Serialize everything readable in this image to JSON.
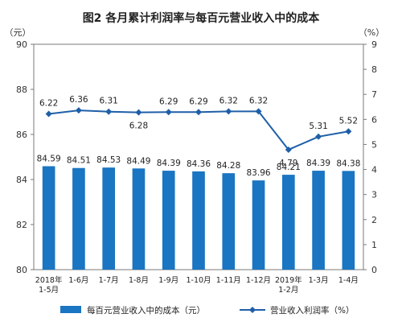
{
  "chart_data": {
    "type": "bar",
    "title": "图2  各月累计利润率与每百元营业收入中的成本",
    "left_unit": "（元）",
    "right_unit": "（%）",
    "categories": [
      [
        "2018年",
        "1-5月"
      ],
      [
        "1-6月"
      ],
      [
        "1-7月"
      ],
      [
        "1-8月"
      ],
      [
        "1-9月"
      ],
      [
        "1-10月"
      ],
      [
        "1-11月"
      ],
      [
        "1-12月"
      ],
      [
        "2019年",
        "1-2月"
      ],
      [
        "1-3月"
      ],
      [
        "1-4月"
      ]
    ],
    "series": [
      {
        "name": "每百元营业收入中的成本（元）",
        "kind": "bar",
        "axis": "left",
        "color": "#1a75c2",
        "values": [
          84.59,
          84.51,
          84.53,
          84.49,
          84.39,
          84.36,
          84.28,
          83.96,
          84.21,
          84.39,
          84.38
        ],
        "labels": [
          "84.59",
          "84.51",
          "84.53",
          "84.49",
          "84.39",
          "84.36",
          "84.28",
          "83.96",
          "84.21",
          "84.39",
          "84.38"
        ]
      },
      {
        "name": "营业收入利润率（%）",
        "kind": "line",
        "axis": "right",
        "color": "#1f5fa8",
        "values": [
          6.22,
          6.36,
          6.31,
          6.28,
          6.29,
          6.29,
          6.32,
          6.32,
          4.79,
          5.31,
          5.52
        ],
        "labels": [
          "6.22",
          "6.36",
          "6.31",
          "6.28",
          "6.29",
          "6.29",
          "6.32",
          "6.32",
          "4.79",
          "5.31",
          "5.52"
        ]
      }
    ],
    "y_left": {
      "min": 80,
      "max": 90,
      "ticks": [
        80,
        82,
        84,
        86,
        88,
        90
      ]
    },
    "y_right": {
      "min": 0,
      "max": 9,
      "ticks": [
        0,
        1,
        2,
        3,
        4,
        5,
        6,
        7,
        8,
        9
      ]
    },
    "grid": false,
    "legend_position": "bottom"
  }
}
